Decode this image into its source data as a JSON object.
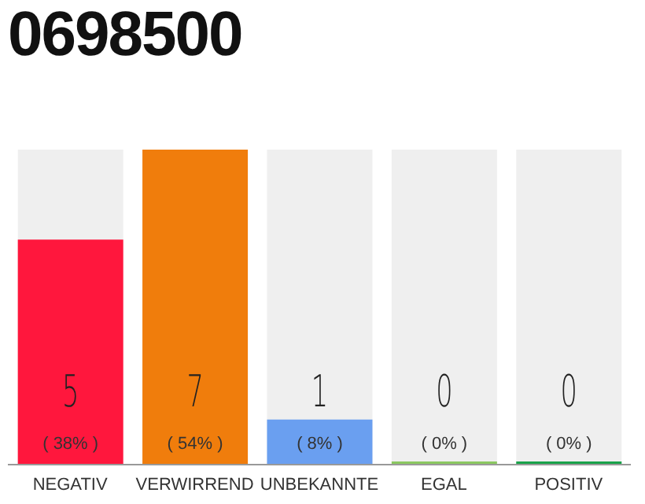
{
  "chart_data": {
    "type": "bar",
    "title": "0698500",
    "categories": [
      "NEGATIV",
      "VERWIRREND",
      "UNBEKANNTE",
      "EGAL",
      "POSITIV"
    ],
    "values": [
      5,
      7,
      1,
      0,
      0
    ],
    "colors": [
      "#ff173d",
      "#f07d0c",
      "#6a9ff0",
      "#8bc860",
      "#1aa34a"
    ],
    "data_labels": true,
    "annotations": [
      "( 38% )",
      "( 54% )",
      "( 8% )",
      "( 0% )",
      "( 0% )"
    ]
  }
}
